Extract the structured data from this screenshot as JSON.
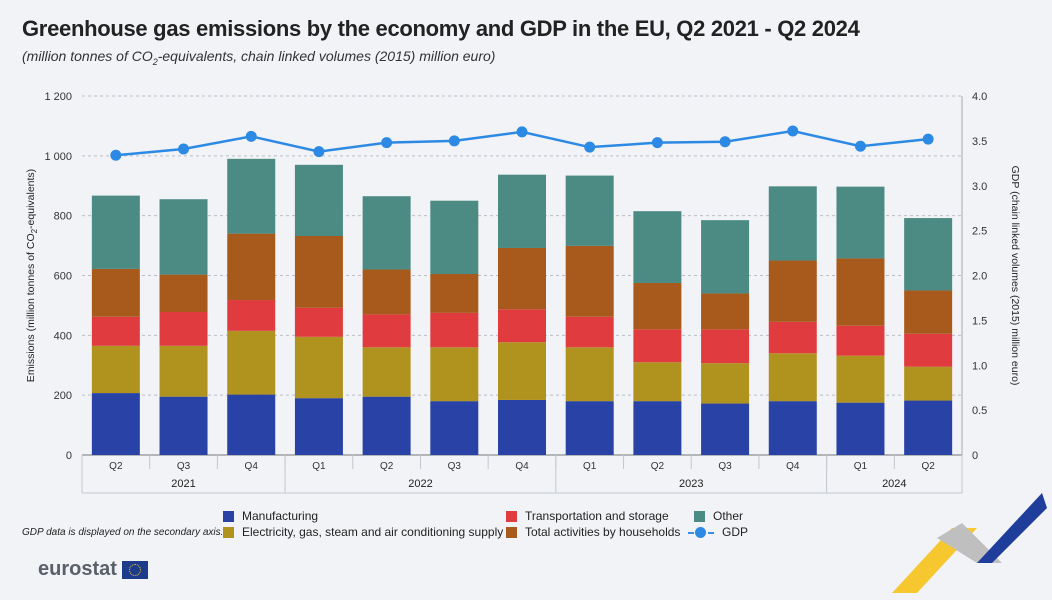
{
  "header": {
    "title": "Greenhouse gas emissions by the economy and GDP in the EU, Q2 2021 - Q2 2024",
    "subtitle_pre": "(million tonnes of CO",
    "subtitle_sub": "2",
    "subtitle_post": "-equivalents, chain linked volumes (2015) million euro)"
  },
  "note": "GDP data is displayed on the secondary axis.",
  "brand": {
    "name": "eurostat"
  },
  "chart_data": {
    "type": "bar",
    "stacked": true,
    "categories": [
      "Q2",
      "Q3",
      "Q4",
      "Q1",
      "Q2",
      "Q3",
      "Q4",
      "Q1",
      "Q2",
      "Q3",
      "Q4",
      "Q1",
      "Q2"
    ],
    "year_groups": [
      {
        "label": "2021",
        "start": 0,
        "end": 2
      },
      {
        "label": "2022",
        "start": 3,
        "end": 6
      },
      {
        "label": "2023",
        "start": 7,
        "end": 10
      },
      {
        "label": "2024",
        "start": 11,
        "end": 12
      }
    ],
    "series": [
      {
        "name": "Manufacturing",
        "color": "#2942a6",
        "values": [
          207,
          195,
          202,
          190,
          195,
          180,
          184,
          180,
          180,
          172,
          180,
          175,
          182
        ]
      },
      {
        "name": "Electricity, gas, steam and air conditioning supply",
        "color": "#b0921e",
        "values": [
          158,
          170,
          213,
          205,
          165,
          180,
          193,
          180,
          130,
          135,
          160,
          157,
          113
        ]
      },
      {
        "name": "Transportation and storage",
        "color": "#e03c3f",
        "values": [
          97,
          113,
          103,
          97,
          110,
          115,
          110,
          102,
          110,
          113,
          105,
          100,
          110
        ]
      },
      {
        "name": "Total activities by households",
        "color": "#a85a1c",
        "values": [
          160,
          125,
          222,
          240,
          150,
          130,
          205,
          237,
          155,
          120,
          205,
          225,
          145
        ]
      },
      {
        "name": "Other",
        "color": "#4b8b84",
        "values": [
          245,
          252,
          250,
          238,
          245,
          245,
          245,
          235,
          240,
          245,
          248,
          240,
          242
        ]
      }
    ],
    "gdp": {
      "name": "GDP",
      "color": "#2d8ae4",
      "values": [
        3.34,
        3.41,
        3.55,
        3.38,
        3.48,
        3.5,
        3.6,
        3.43,
        3.48,
        3.49,
        3.61,
        3.44,
        3.52
      ]
    },
    "ylabel": "Emissions (million tonnes of CO2-equivalents)",
    "ylabel_pre": "Emissions (million tonnes of CO",
    "ylabel_sub": "2",
    "ylabel_post": "-equivalents)",
    "y2label": "GDP (chain linked volumes (2015) million euro)",
    "ylim": [
      0,
      1200
    ],
    "y2lim": [
      0,
      4.0
    ],
    "yticks": [
      "0",
      "200",
      "400",
      "600",
      "800",
      "1 000",
      "1 200"
    ],
    "y2ticks": [
      "0",
      "0.5",
      "1.0",
      "1.5",
      "2.0",
      "2.5",
      "3.0",
      "3.5",
      "4.0"
    ],
    "grid": true,
    "legend_position": "bottom"
  }
}
